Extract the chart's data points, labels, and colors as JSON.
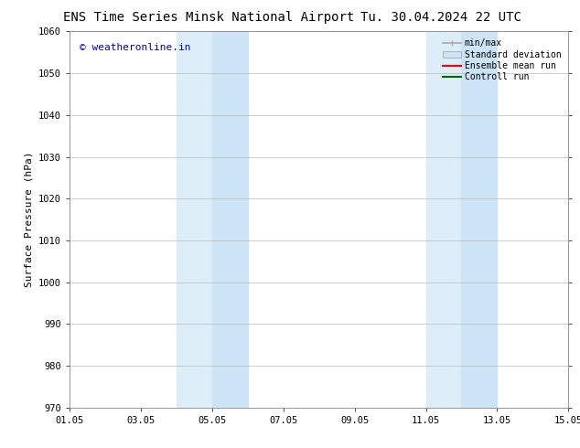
{
  "title_left": "ENS Time Series Minsk National Airport",
  "title_right": "Tu. 30.04.2024 22 UTC",
  "ylabel": "Surface Pressure (hPa)",
  "ylim": [
    970,
    1060
  ],
  "yticks": [
    970,
    980,
    990,
    1000,
    1010,
    1020,
    1030,
    1040,
    1050,
    1060
  ],
  "xtick_labels": [
    "01.05",
    "03.05",
    "05.05",
    "07.05",
    "09.05",
    "11.05",
    "13.05",
    "15.05"
  ],
  "xtick_positions": [
    0,
    2,
    4,
    6,
    8,
    10,
    12,
    14
  ],
  "xlim": [
    0,
    14
  ],
  "shaded_regions": [
    {
      "x_start": 3.0,
      "x_end": 4.0,
      "color": "#ddeef8",
      "alpha": 1.0
    },
    {
      "x_start": 4.0,
      "x_end": 5.0,
      "color": "#cce4f5",
      "alpha": 1.0
    },
    {
      "x_start": 10.0,
      "x_end": 11.0,
      "color": "#ddeef8",
      "alpha": 1.0
    },
    {
      "x_start": 11.0,
      "x_end": 12.0,
      "color": "#cce4f5",
      "alpha": 1.0
    }
  ],
  "watermark_text": "© weatheronline.in",
  "watermark_color": "#0000cc",
  "legend_items": [
    {
      "label": "min/max",
      "color": "#aaaaaa",
      "style": "line"
    },
    {
      "label": "Standard deviation",
      "color": "#d6e8f7",
      "style": "bar"
    },
    {
      "label": "Ensemble mean run",
      "color": "red",
      "style": "line"
    },
    {
      "label": "Controll run",
      "color": "green",
      "style": "line"
    }
  ],
  "background_color": "#ffffff",
  "grid_color": "#bbbbbb",
  "title_fontsize": 10,
  "axis_label_fontsize": 8,
  "tick_fontsize": 7.5,
  "legend_fontsize": 7
}
